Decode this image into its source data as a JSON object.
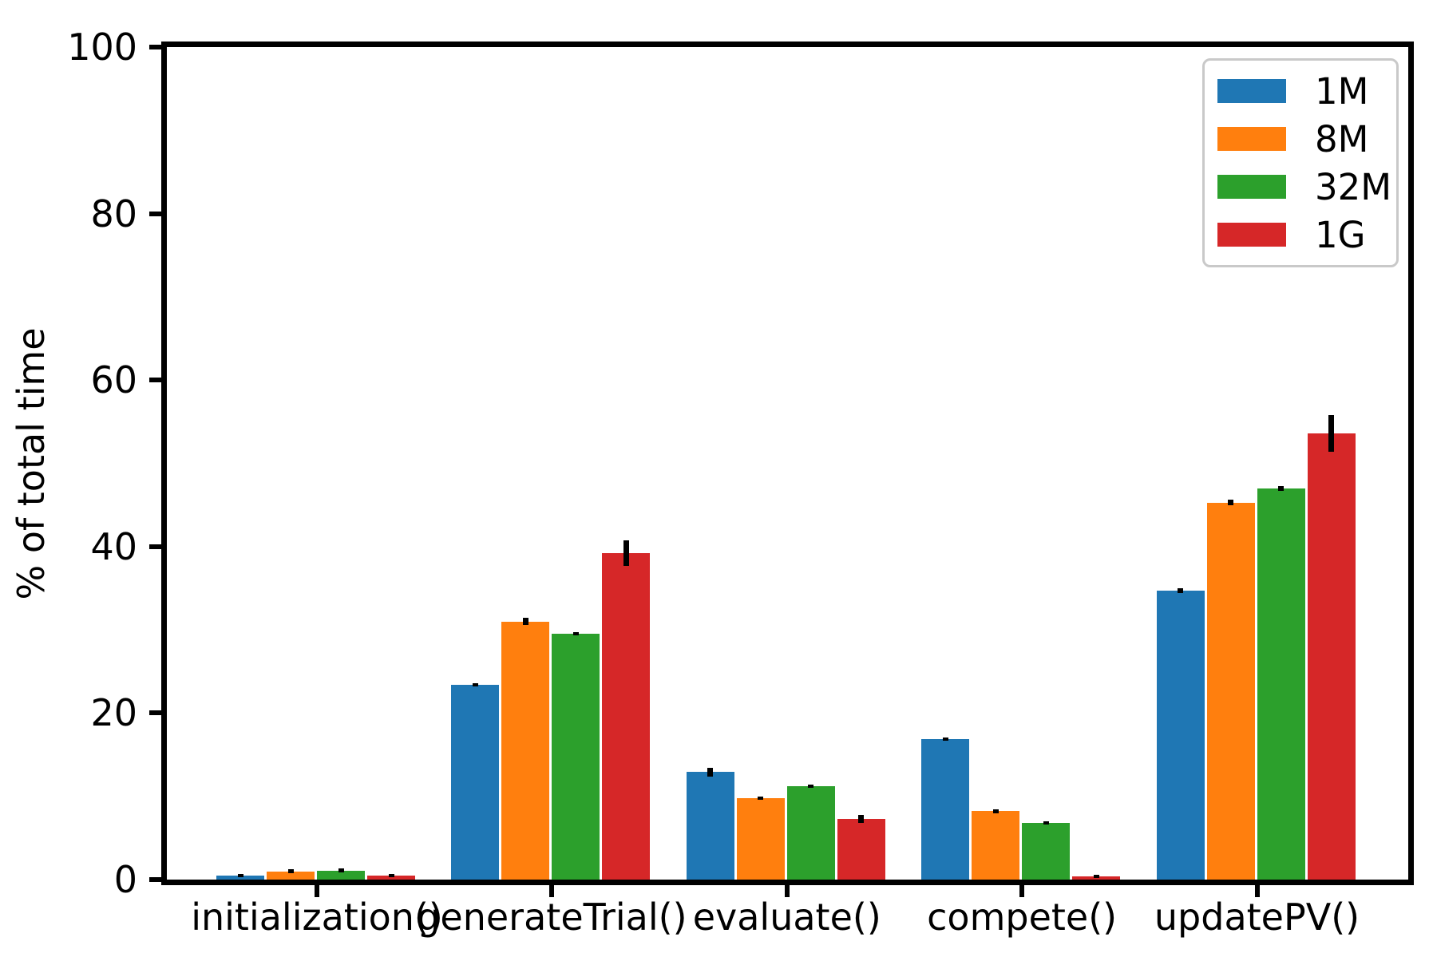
{
  "figure": {
    "background": "#ffffff",
    "spine_color": "#000000",
    "error_bar_color": "#000000",
    "legend_border_color": "#c9c9c9"
  },
  "axes": {
    "ylabel": "% of total time",
    "xlabel": "",
    "ytick_labels": [
      "0",
      "20",
      "40",
      "60",
      "80",
      "100"
    ]
  },
  "legend": {
    "items": [
      {
        "label": "1M",
        "color": "#1f77b4"
      },
      {
        "label": "8M",
        "color": "#ff7f0e"
      },
      {
        "label": "32M",
        "color": "#2ca02c"
      },
      {
        "label": "1G",
        "color": "#d62728"
      }
    ]
  },
  "chart_data": {
    "type": "bar",
    "title": "",
    "xlabel": "",
    "ylabel": "% of total time",
    "ylim": [
      0,
      100
    ],
    "yticks": [
      0,
      20,
      40,
      60,
      80,
      100
    ],
    "grid": false,
    "legend_position": "upper right",
    "error_bars": true,
    "categories": [
      "initialization()",
      "generateTrial()",
      "evaluate()",
      "compete()",
      "updatePV()"
    ],
    "series": [
      {
        "name": "1M",
        "color": "#1f77b4",
        "values": [
          0.5,
          23.4,
          12.9,
          16.9,
          34.7
        ],
        "errors": [
          0.1,
          0.2,
          0.5,
          0.2,
          0.3
        ]
      },
      {
        "name": "8M",
        "color": "#ff7f0e",
        "values": [
          1.0,
          31.0,
          9.8,
          8.2,
          45.3
        ],
        "errors": [
          0.2,
          0.4,
          0.2,
          0.2,
          0.3
        ]
      },
      {
        "name": "32M",
        "color": "#2ca02c",
        "values": [
          1.1,
          29.5,
          11.2,
          6.8,
          47.0
        ],
        "errors": [
          0.2,
          0.2,
          0.2,
          0.1,
          0.3
        ]
      },
      {
        "name": "1G",
        "color": "#d62728",
        "values": [
          0.5,
          39.2,
          7.3,
          0.4,
          53.6
        ],
        "errors": [
          0.1,
          1.5,
          0.5,
          0.1,
          2.2
        ]
      }
    ]
  }
}
